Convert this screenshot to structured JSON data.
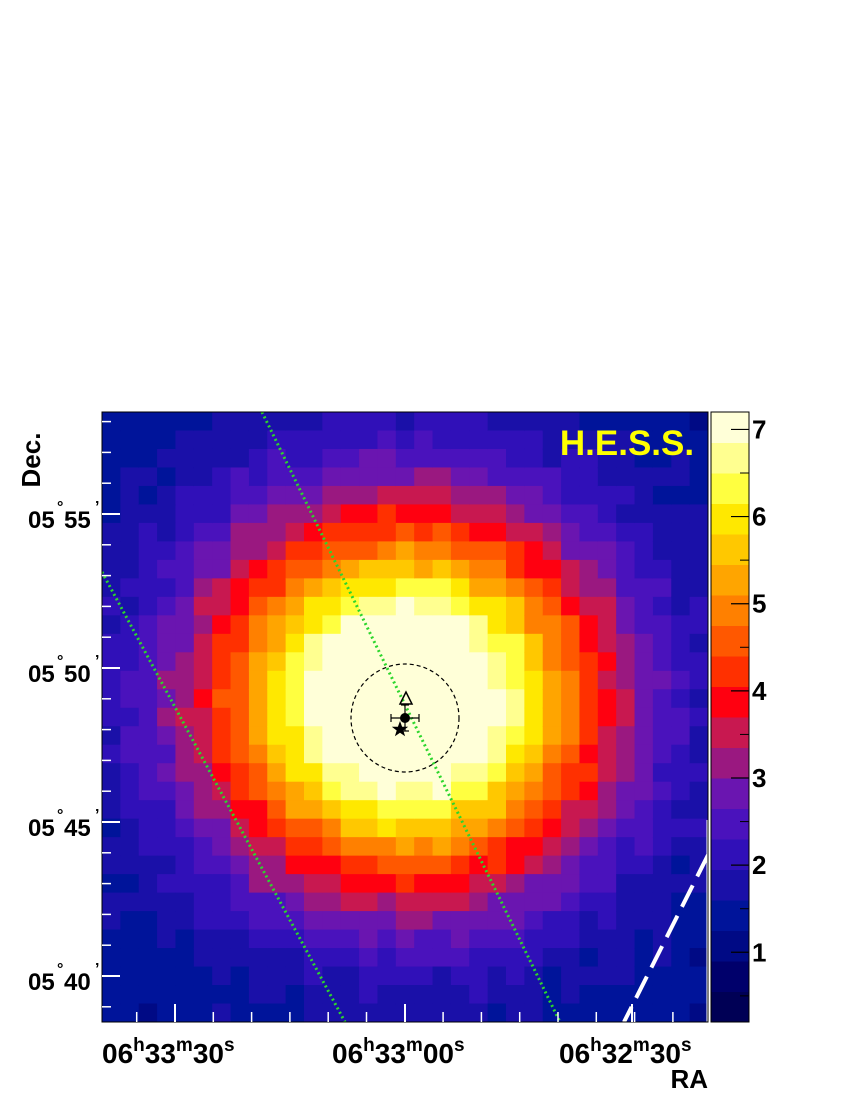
{
  "chart_data": {
    "type": "heatmap",
    "xlabel": "RA",
    "ylabel": "Dec.",
    "annotation": "H.E.S.S.",
    "colorbar": {
      "min": 0.2,
      "max": 7.2,
      "ticks": [
        1,
        2,
        3,
        4,
        5,
        6,
        7
      ],
      "colors": [
        "#000055",
        "#00006b",
        "#000a85",
        "#00149a",
        "#1a10a8",
        "#3010b8",
        "#4a12bc",
        "#6a15b0",
        "#9a1880",
        "#c81850",
        "#ff0010",
        "#ff3000",
        "#ff5800",
        "#ff8000",
        "#ffa500",
        "#ffc800",
        "#ffe800",
        "#ffff40",
        "#ffff90",
        "#ffffd8"
      ]
    },
    "x_ticks": [
      {
        "h": "06",
        "m": "33",
        "s": "30"
      },
      {
        "h": "06",
        "m": "33",
        "s": "00"
      },
      {
        "h": "06",
        "m": "32",
        "s": "30"
      }
    ],
    "y_ticks": [
      {
        "deg": "05",
        "min": "55"
      },
      {
        "deg": "05",
        "min": "50"
      },
      {
        "deg": "05",
        "min": "45"
      },
      {
        "deg": "05",
        "min": "40"
      }
    ],
    "peak_value": 7.2,
    "background_value": 1.3,
    "threshold_circle": "dashed circle",
    "markers": [
      "triangle",
      "filled circle with error bars",
      "star"
    ],
    "line_styles": [
      "green dotted",
      "white dashed"
    ]
  }
}
